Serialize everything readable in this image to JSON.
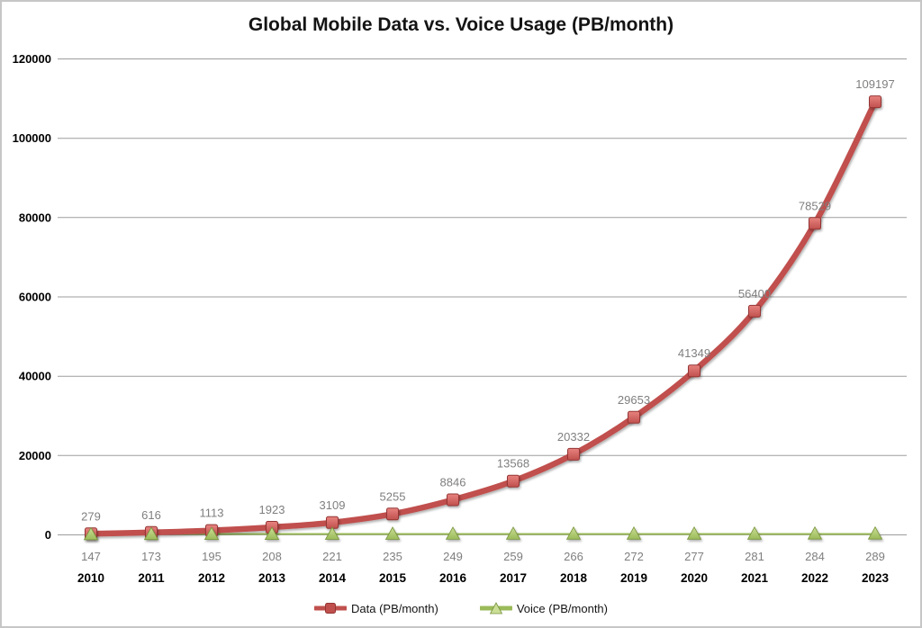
{
  "chart_data": {
    "type": "line",
    "title": "Global Mobile Data vs. Voice Usage (PB/month)",
    "categories": [
      "2010",
      "2011",
      "2012",
      "2013",
      "2014",
      "2015",
      "2016",
      "2017",
      "2018",
      "2019",
      "2020",
      "2021",
      "2022",
      "2023"
    ],
    "series": [
      {
        "name": "Data (PB/month)",
        "values": [
          279,
          616,
          1113,
          1923,
          3109,
          5255,
          8846,
          13568,
          20332,
          29653,
          41349,
          56400,
          78529,
          109197
        ],
        "marker": "square",
        "color": "#c0504d",
        "color_light": "#e8837f",
        "color_dark": "#943634",
        "labels_position": "above",
        "smooth": true
      },
      {
        "name": "Voice (PB/month)",
        "values": [
          147,
          173,
          195,
          208,
          221,
          235,
          249,
          259,
          266,
          272,
          277,
          281,
          284,
          289
        ],
        "marker": "triangle",
        "color": "#9bbb59",
        "color_light": "#cbde96",
        "color_dark": "#77933c",
        "labels_position": "below",
        "smooth": false
      }
    ],
    "ylim": [
      0,
      120000
    ],
    "y_ticks": [
      0,
      20000,
      40000,
      60000,
      80000,
      100000,
      120000
    ],
    "grid": true,
    "gridline_color": "#9d9d9d",
    "data_label_color": "#7f7f7f",
    "axis_text_color": "#000000",
    "legend_position": "bottom"
  }
}
